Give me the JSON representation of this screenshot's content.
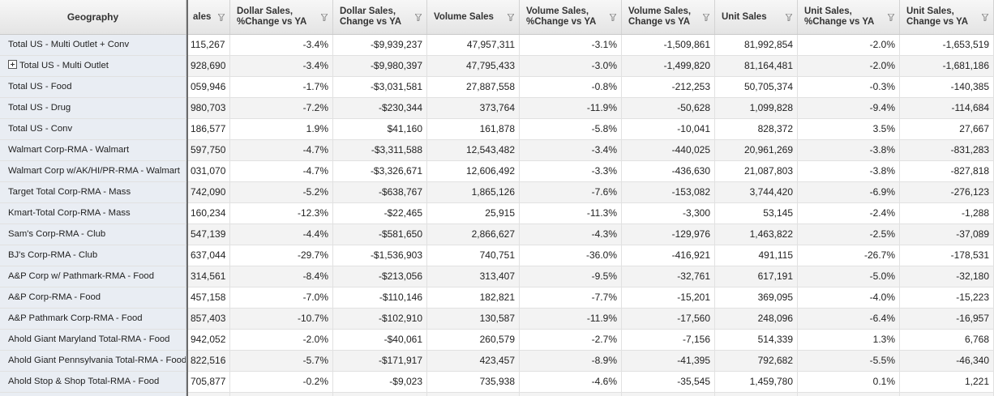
{
  "header": {
    "geography": "Geography",
    "columns": [
      {
        "label": "ales"
      },
      {
        "label": "Dollar Sales,\n%Change vs YA"
      },
      {
        "label": "Dollar Sales,\nChange vs YA"
      },
      {
        "label": "Volume Sales"
      },
      {
        "label": "Volume Sales,\n%Change vs YA"
      },
      {
        "label": "Volume Sales,\nChange vs YA"
      },
      {
        "label": "Unit Sales"
      },
      {
        "label": "Unit Sales,\n%Change vs YA"
      },
      {
        "label": "Unit Sales,\nChange vs YA"
      }
    ]
  },
  "rows": [
    {
      "geo": "Total US - Multi Outlet + Conv",
      "expandable": false,
      "cells": [
        "115,267",
        "-3.4%",
        "-$9,939,237",
        "47,957,311",
        "-3.1%",
        "-1,509,861",
        "81,992,854",
        "-2.0%",
        "-1,653,519"
      ]
    },
    {
      "geo": "Total US - Multi Outlet",
      "expandable": true,
      "cells": [
        "928,690",
        "-3.4%",
        "-$9,980,397",
        "47,795,433",
        "-3.0%",
        "-1,499,820",
        "81,164,481",
        "-2.0%",
        "-1,681,186"
      ]
    },
    {
      "geo": "Total US - Food",
      "expandable": false,
      "cells": [
        "059,946",
        "-1.7%",
        "-$3,031,581",
        "27,887,558",
        "-0.8%",
        "-212,253",
        "50,705,374",
        "-0.3%",
        "-140,385"
      ]
    },
    {
      "geo": "Total US - Drug",
      "expandable": false,
      "cells": [
        "980,703",
        "-7.2%",
        "-$230,344",
        "373,764",
        "-11.9%",
        "-50,628",
        "1,099,828",
        "-9.4%",
        "-114,684"
      ]
    },
    {
      "geo": "Total US - Conv",
      "expandable": false,
      "cells": [
        "186,577",
        "1.9%",
        "$41,160",
        "161,878",
        "-5.8%",
        "-10,041",
        "828,372",
        "3.5%",
        "27,667"
      ]
    },
    {
      "geo": "Walmart Corp-RMA - Walmart",
      "expandable": false,
      "cells": [
        "597,750",
        "-4.7%",
        "-$3,311,588",
        "12,543,482",
        "-3.4%",
        "-440,025",
        "20,961,269",
        "-3.8%",
        "-831,283"
      ]
    },
    {
      "geo": "Walmart Corp w/AK/HI/PR-RMA - Walmart",
      "expandable": false,
      "cells": [
        "031,070",
        "-4.7%",
        "-$3,326,671",
        "12,606,492",
        "-3.3%",
        "-436,630",
        "21,087,803",
        "-3.8%",
        "-827,818"
      ]
    },
    {
      "geo": "Target Total Corp-RMA - Mass",
      "expandable": false,
      "cells": [
        "742,090",
        "-5.2%",
        "-$638,767",
        "1,865,126",
        "-7.6%",
        "-153,082",
        "3,744,420",
        "-6.9%",
        "-276,123"
      ]
    },
    {
      "geo": "Kmart-Total Corp-RMA - Mass",
      "expandable": false,
      "cells": [
        "160,234",
        "-12.3%",
        "-$22,465",
        "25,915",
        "-11.3%",
        "-3,300",
        "53,145",
        "-2.4%",
        "-1,288"
      ]
    },
    {
      "geo": "Sam's Corp-RMA - Club",
      "expandable": false,
      "cells": [
        "547,139",
        "-4.4%",
        "-$581,650",
        "2,866,627",
        "-4.3%",
        "-129,976",
        "1,463,822",
        "-2.5%",
        "-37,089"
      ]
    },
    {
      "geo": "BJ's Corp-RMA - Club",
      "expandable": false,
      "cells": [
        "637,044",
        "-29.7%",
        "-$1,536,903",
        "740,751",
        "-36.0%",
        "-416,921",
        "491,115",
        "-26.7%",
        "-178,531"
      ]
    },
    {
      "geo": "A&P Corp w/ Pathmark-RMA - Food",
      "expandable": false,
      "cells": [
        "314,561",
        "-8.4%",
        "-$213,056",
        "313,407",
        "-9.5%",
        "-32,761",
        "617,191",
        "-5.0%",
        "-32,180"
      ]
    },
    {
      "geo": "A&P Corp-RMA - Food",
      "expandable": false,
      "cells": [
        "457,158",
        "-7.0%",
        "-$110,146",
        "182,821",
        "-7.7%",
        "-15,201",
        "369,095",
        "-4.0%",
        "-15,223"
      ]
    },
    {
      "geo": "A&P Pathmark Corp-RMA - Food",
      "expandable": false,
      "cells": [
        "857,403",
        "-10.7%",
        "-$102,910",
        "130,587",
        "-11.9%",
        "-17,560",
        "248,096",
        "-6.4%",
        "-16,957"
      ]
    },
    {
      "geo": "Ahold Giant Maryland Total-RMA - Food",
      "expandable": false,
      "cells": [
        "942,052",
        "-2.0%",
        "-$40,061",
        "260,579",
        "-2.7%",
        "-7,156",
        "514,339",
        "1.3%",
        "6,768"
      ]
    },
    {
      "geo": "Ahold Giant Pennsylvania Total-RMA - Food",
      "expandable": false,
      "cells": [
        "822,516",
        "-5.7%",
        "-$171,917",
        "423,457",
        "-8.9%",
        "-41,395",
        "792,682",
        "-5.5%",
        "-46,340"
      ]
    },
    {
      "geo": "Ahold Stop & Shop Total-RMA - Food",
      "expandable": false,
      "cells": [
        "705,877",
        "-0.2%",
        "-$9,023",
        "735,938",
        "-4.6%",
        "-35,545",
        "1,459,780",
        "0.1%",
        "1,221"
      ]
    },
    {
      "geo": "",
      "expandable": false,
      "cells": [
        "",
        "",
        "",
        "",
        "",
        "",
        "",
        "",
        ""
      ]
    }
  ]
}
